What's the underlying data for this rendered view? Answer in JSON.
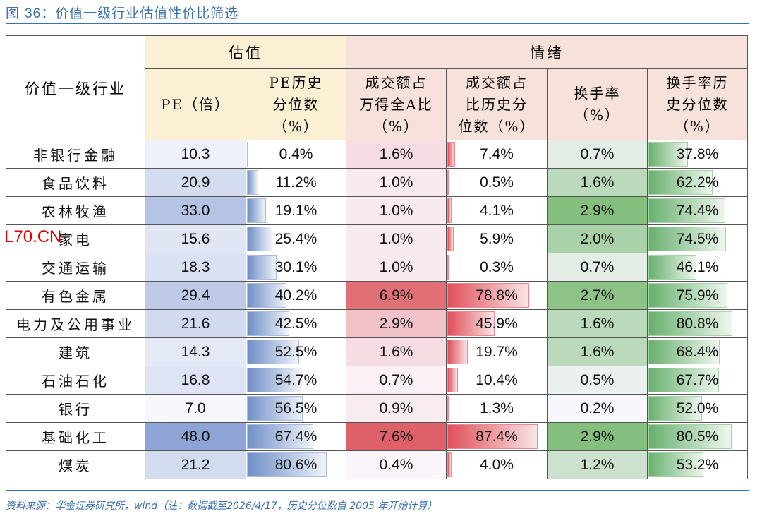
{
  "figure": {
    "title_prefix": "图 ",
    "title_number": "36",
    "title_text": "：价值一级行业估值性价比筛选"
  },
  "table": {
    "corner_header": "价值一级行业",
    "groups": {
      "valuation": "估值",
      "sentiment": "情绪"
    },
    "columns": [
      {
        "key": "pe",
        "label_lines": [
          "PE（倍）"
        ]
      },
      {
        "key": "pe_pct",
        "label_lines": [
          "PE历史",
          "分位数",
          "（%）"
        ]
      },
      {
        "key": "turnover_share",
        "label_lines": [
          "成交额占",
          "万得全A比",
          "（%）"
        ]
      },
      {
        "key": "turnover_share_pct",
        "label_lines": [
          "成交额占",
          "比历史分",
          "位数（%）"
        ]
      },
      {
        "key": "turnover_rate",
        "label_lines": [
          "换手率",
          "（%）"
        ]
      },
      {
        "key": "turnover_rate_pct",
        "label_lines": [
          "换手率历",
          "史分位数",
          "（%）"
        ]
      }
    ],
    "rows": [
      {
        "industry": "非银行金融",
        "pe": "10.3",
        "pe_pct": "0.4%",
        "turnover_share": "1.6%",
        "turnover_share_pct": "7.4%",
        "turnover_rate": "0.7%",
        "turnover_rate_pct": "37.8%"
      },
      {
        "industry": "食品饮料",
        "pe": "20.9",
        "pe_pct": "11.2%",
        "turnover_share": "1.0%",
        "turnover_share_pct": "0.5%",
        "turnover_rate": "1.6%",
        "turnover_rate_pct": "62.2%"
      },
      {
        "industry": "农林牧渔",
        "pe": "33.0",
        "pe_pct": "19.1%",
        "turnover_share": "1.0%",
        "turnover_share_pct": "4.1%",
        "turnover_rate": "2.9%",
        "turnover_rate_pct": "74.4%"
      },
      {
        "industry": "家电",
        "pe": "15.6",
        "pe_pct": "25.4%",
        "turnover_share": "1.0%",
        "turnover_share_pct": "5.9%",
        "turnover_rate": "2.0%",
        "turnover_rate_pct": "74.5%"
      },
      {
        "industry": "交通运输",
        "pe": "18.3",
        "pe_pct": "30.1%",
        "turnover_share": "1.0%",
        "turnover_share_pct": "0.3%",
        "turnover_rate": "0.7%",
        "turnover_rate_pct": "46.1%"
      },
      {
        "industry": "有色金属",
        "pe": "29.4",
        "pe_pct": "40.2%",
        "turnover_share": "6.9%",
        "turnover_share_pct": "78.8%",
        "turnover_rate": "2.7%",
        "turnover_rate_pct": "75.9%"
      },
      {
        "industry": "电力及公用事业",
        "pe": "21.6",
        "pe_pct": "42.5%",
        "turnover_share": "2.9%",
        "turnover_share_pct": "45.9%",
        "turnover_rate": "1.6%",
        "turnover_rate_pct": "80.8%"
      },
      {
        "industry": "建筑",
        "pe": "14.3",
        "pe_pct": "52.5%",
        "turnover_share": "1.6%",
        "turnover_share_pct": "19.7%",
        "turnover_rate": "1.6%",
        "turnover_rate_pct": "68.4%"
      },
      {
        "industry": "石油石化",
        "pe": "16.8",
        "pe_pct": "54.7%",
        "turnover_share": "0.7%",
        "turnover_share_pct": "10.4%",
        "turnover_rate": "0.5%",
        "turnover_rate_pct": "67.7%"
      },
      {
        "industry": "银行",
        "pe": "7.0",
        "pe_pct": "56.5%",
        "turnover_share": "0.9%",
        "turnover_share_pct": "1.3%",
        "turnover_rate": "0.2%",
        "turnover_rate_pct": "52.0%"
      },
      {
        "industry": "基础化工",
        "pe": "48.0",
        "pe_pct": "67.4%",
        "turnover_share": "7.6%",
        "turnover_share_pct": "87.4%",
        "turnover_rate": "2.9%",
        "turnover_rate_pct": "80.5%"
      },
      {
        "industry": "煤炭",
        "pe": "21.2",
        "pe_pct": "80.6%",
        "turnover_share": "0.4%",
        "turnover_share_pct": "4.0%",
        "turnover_rate": "1.2%",
        "turnover_rate_pct": "53.2%"
      }
    ]
  },
  "colors": {
    "title_blue": "#3a6fb0",
    "valuation_header_bg": "#fbf0d3",
    "sentiment_header_bg": "#f6e2da",
    "pe_heat_max": "#8fa4d6",
    "share_heat_max": "#de6068",
    "rate_heat_max": "#84bf7e",
    "bar_blue": "#6f8fc6",
    "bar_red": "#e0505a",
    "bar_green": "#69b06f"
  },
  "footer": {
    "source_text": "资料来源：华金证券研究所，wind（注：数据截至2026/4/17，历史分位数自 2005 年开始计算）"
  },
  "watermark": "L70.CN"
}
